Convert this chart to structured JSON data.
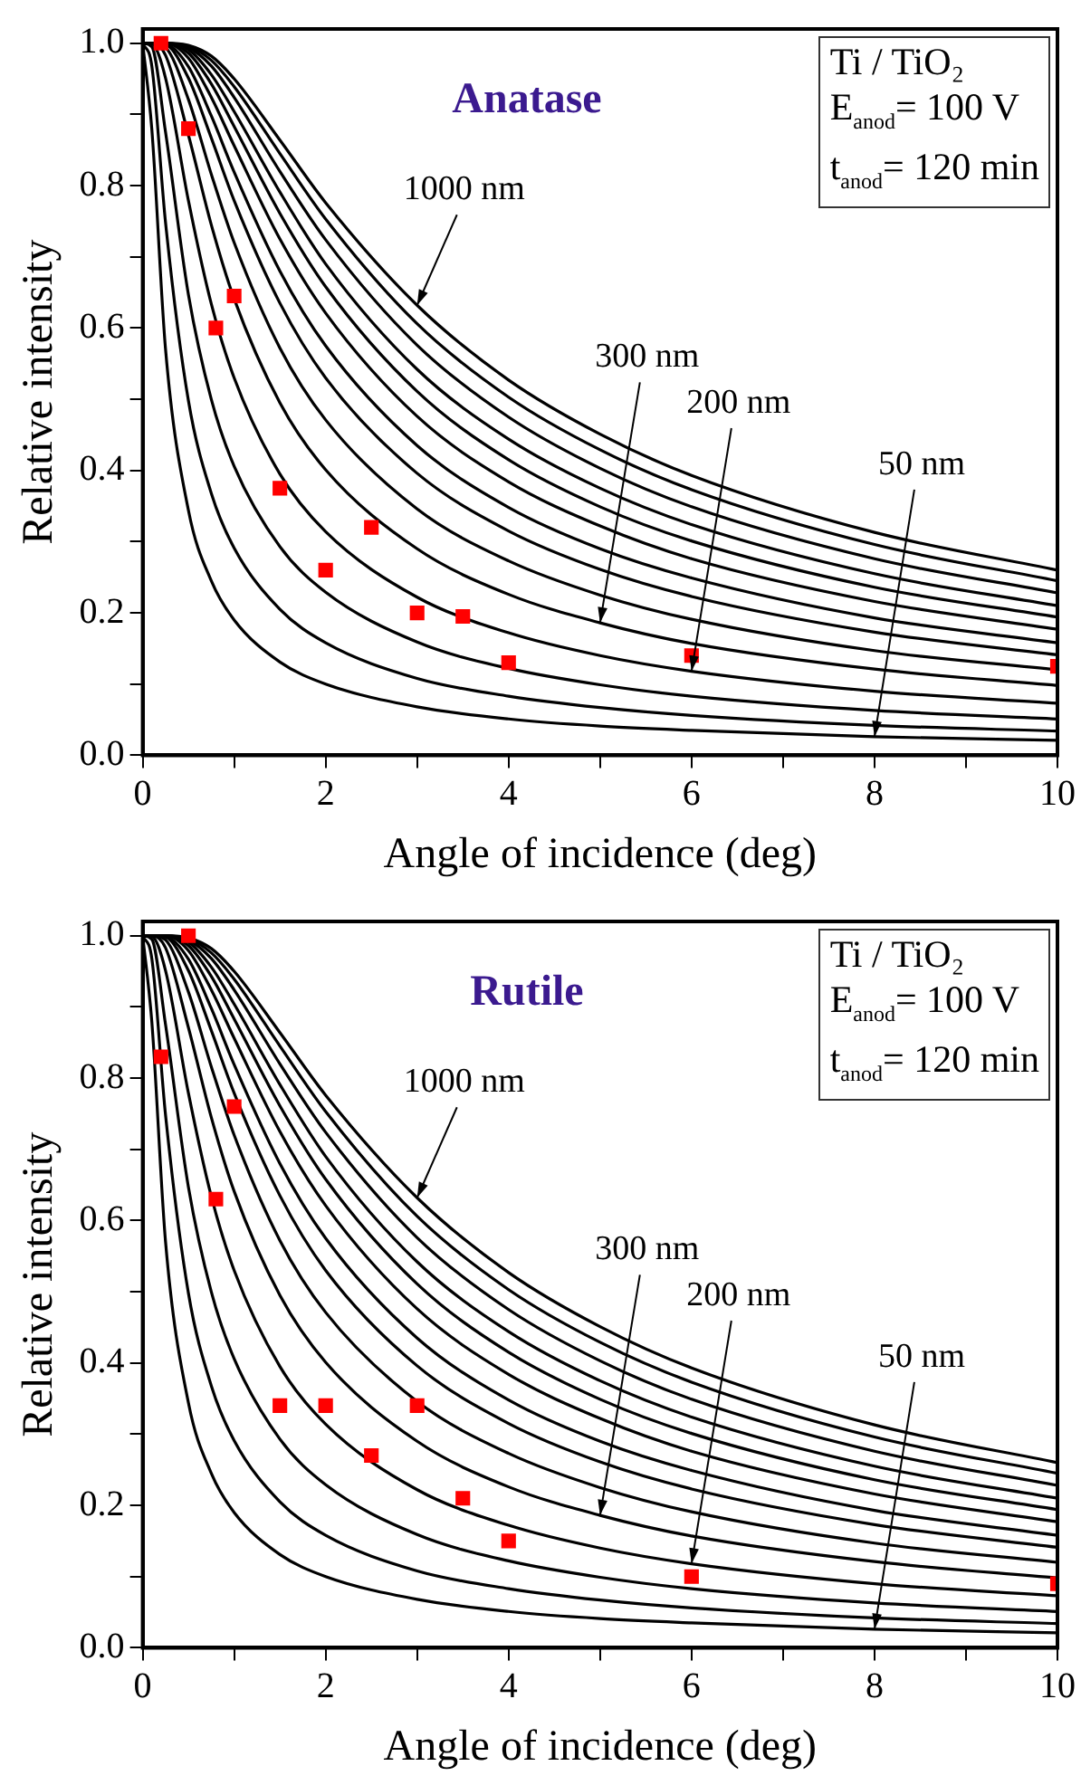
{
  "chart_data": [
    {
      "type": "line",
      "title": "Anatase",
      "xlabel": "Angle of incidence (deg)",
      "ylabel": "Relative intensity",
      "xlim": [
        0,
        10
      ],
      "ylim": [
        0,
        1.02
      ],
      "xticks": [
        0,
        {
          "value": 1,
          "label": null
        },
        2,
        {
          "value": 3,
          "label": null
        },
        4,
        {
          "value": 5,
          "label": null
        },
        6,
        {
          "value": 7,
          "label": null
        },
        8,
        {
          "value": 9,
          "label": null
        },
        10
      ],
      "yticks": [
        {
          "value": 0,
          "label": "0.0"
        },
        {
          "value": 0.1,
          "label": null
        },
        {
          "value": 0.2,
          "label": "0.2"
        },
        {
          "value": 0.3,
          "label": null
        },
        {
          "value": 0.4,
          "label": "0.4"
        },
        {
          "value": 0.5,
          "label": null
        },
        {
          "value": 0.6,
          "label": "0.6"
        },
        {
          "value": 0.7,
          "label": null
        },
        {
          "value": 0.8,
          "label": "0.8"
        },
        {
          "value": 0.9,
          "label": null
        },
        {
          "value": 1,
          "label": "1.0"
        }
      ],
      "x": [
        0,
        0.1,
        0.25,
        0.5,
        0.75,
        1,
        1.5,
        2,
        3,
        4,
        5,
        6,
        8,
        10
      ],
      "series": [
        {
          "color": "#000000",
          "values": [
            1,
            1,
            1,
            0.997,
            0.982,
            0.95,
            0.864,
            0.776,
            0.632,
            0.527,
            0.451,
            0.393,
            0.313,
            0.26
          ]
        },
        {
          "color": "#000000",
          "values": [
            1,
            1,
            1,
            0.996,
            0.976,
            0.939,
            0.845,
            0.753,
            0.606,
            0.503,
            0.429,
            0.373,
            0.296,
            0.245
          ]
        },
        {
          "color": "#000000",
          "values": [
            1,
            1,
            1,
            0.994,
            0.968,
            0.924,
            0.82,
            0.724,
            0.576,
            0.475,
            0.403,
            0.349,
            0.276,
            0.228
          ]
        },
        {
          "color": "#000000",
          "values": [
            1,
            1,
            1,
            0.991,
            0.956,
            0.904,
            0.791,
            0.69,
            0.542,
            0.444,
            0.375,
            0.324,
            0.255,
            0.21
          ]
        },
        {
          "color": "#000000",
          "values": [
            1,
            1,
            1,
            0.986,
            0.943,
            0.883,
            0.761,
            0.658,
            0.511,
            0.415,
            0.349,
            0.301,
            0.236,
            0.194
          ]
        },
        {
          "color": "#000000",
          "values": [
            1,
            1,
            1,
            0.979,
            0.924,
            0.856,
            0.725,
            0.621,
            0.476,
            0.384,
            0.322,
            0.276,
            0.216,
            0.177
          ]
        },
        {
          "color": "#000000",
          "values": [
            1,
            1,
            0.999,
            0.967,
            0.898,
            0.819,
            0.68,
            0.575,
            0.435,
            0.348,
            0.29,
            0.249,
            0.193,
            0.158
          ]
        },
        {
          "color": "#000000",
          "values": [
            1,
            1,
            0.998,
            0.951,
            0.867,
            0.779,
            0.635,
            0.53,
            0.396,
            0.315,
            0.261,
            0.223,
            0.173,
            0.141
          ]
        },
        {
          "color": "#000000",
          "values": [
            1,
            1,
            0.994,
            0.921,
            0.816,
            0.72,
            0.572,
            0.471,
            0.346,
            0.273,
            0.225,
            0.191,
            0.147,
            0.12
          ]
        },
        {
          "color": "#000000",
          "values": [
            1,
            1,
            0.983,
            0.871,
            0.745,
            0.641,
            0.495,
            0.401,
            0.29,
            0.226,
            0.186,
            0.157,
            0.121,
            0.098
          ]
        },
        {
          "color": "#000000",
          "values": [
            1,
            0.999,
            0.951,
            0.779,
            0.634,
            0.53,
            0.395,
            0.314,
            0.222,
            0.172,
            0.14,
            0.118,
            0.09,
            0.073
          ]
        },
        {
          "color": "#000000",
          "values": [
            1,
            0.995,
            0.875,
            0.647,
            0.5,
            0.406,
            0.293,
            0.229,
            0.159,
            0.122,
            0.099,
            0.083,
            0.063,
            0.051
          ]
        },
        {
          "color": "#000000",
          "values": [
            1,
            0.968,
            0.748,
            0.498,
            0.368,
            0.291,
            0.205,
            0.158,
            0.108,
            0.083,
            0.067,
            0.056,
            0.042,
            0.034
          ]
        },
        {
          "color": "#000000",
          "values": [
            1,
            0.879,
            0.57,
            0.344,
            0.245,
            0.19,
            0.131,
            0.1,
            0.068,
            0.051,
            0.041,
            0.035,
            0.026,
            0.021
          ]
        },
        {
          "type": "scatter",
          "marker": "square",
          "color": "#ff0000",
          "x": [
            0.2,
            0.5,
            0.8,
            1,
            1.5,
            2,
            2.5,
            3,
            3.5,
            4,
            6,
            10
          ],
          "values": [
            1,
            0.88,
            0.6,
            0.645,
            0.375,
            0.26,
            0.32,
            0.2,
            0.195,
            0.13,
            0.14,
            0.125
          ]
        }
      ],
      "annotations": [
        "Ti / TiO₂",
        "E$_{anod}$= 100 V",
        "t$_{anod}$= 120 min",
        {
          "text": "1000 nm",
          "x": 3,
          "y": 0.632
        },
        {
          "text": "300 nm",
          "x": 5,
          "y": 0.186
        },
        {
          "text": "200 nm",
          "x": 6,
          "y": 0.118
        },
        {
          "text": "50 nm",
          "x": 8,
          "y": 0.026
        }
      ]
    },
    {
      "type": "line",
      "title": "Rutile",
      "xlabel": "Angle of incidence (deg)",
      "ylabel": "Relative intensity",
      "xlim": [
        0,
        10
      ],
      "ylim": [
        0,
        1.02
      ],
      "xticks": [
        0,
        {
          "value": 1,
          "label": null
        },
        2,
        {
          "value": 3,
          "label": null
        },
        4,
        {
          "value": 5,
          "label": null
        },
        6,
        {
          "value": 7,
          "label": null
        },
        8,
        {
          "value": 9,
          "label": null
        },
        10
      ],
      "yticks": [
        {
          "value": 0,
          "label": "0.0"
        },
        {
          "value": 0.1,
          "label": null
        },
        {
          "value": 0.2,
          "label": "0.2"
        },
        {
          "value": 0.3,
          "label": null
        },
        {
          "value": 0.4,
          "label": "0.4"
        },
        {
          "value": 0.5,
          "label": null
        },
        {
          "value": 0.6,
          "label": "0.6"
        },
        {
          "value": 0.7,
          "label": null
        },
        {
          "value": 0.8,
          "label": "0.8"
        },
        {
          "value": 0.9,
          "label": null
        },
        {
          "value": 1,
          "label": "1.0"
        }
      ],
      "x": [
        0,
        0.1,
        0.25,
        0.5,
        0.75,
        1,
        1.5,
        2,
        3,
        4,
        5,
        6,
        8,
        10
      ],
      "series": [
        {
          "color": "#000000",
          "values": [
            1,
            1,
            1,
            0.997,
            0.982,
            0.95,
            0.864,
            0.776,
            0.632,
            0.527,
            0.451,
            0.393,
            0.313,
            0.26
          ]
        },
        {
          "color": "#000000",
          "values": [
            1,
            1,
            1,
            0.996,
            0.976,
            0.939,
            0.845,
            0.753,
            0.606,
            0.503,
            0.429,
            0.373,
            0.296,
            0.245
          ]
        },
        {
          "color": "#000000",
          "values": [
            1,
            1,
            1,
            0.994,
            0.968,
            0.924,
            0.82,
            0.724,
            0.576,
            0.475,
            0.403,
            0.349,
            0.276,
            0.228
          ]
        },
        {
          "color": "#000000",
          "values": [
            1,
            1,
            1,
            0.991,
            0.956,
            0.904,
            0.791,
            0.69,
            0.542,
            0.444,
            0.375,
            0.324,
            0.255,
            0.21
          ]
        },
        {
          "color": "#000000",
          "values": [
            1,
            1,
            1,
            0.986,
            0.943,
            0.883,
            0.761,
            0.658,
            0.511,
            0.415,
            0.349,
            0.301,
            0.236,
            0.194
          ]
        },
        {
          "color": "#000000",
          "values": [
            1,
            1,
            1,
            0.979,
            0.924,
            0.856,
            0.725,
            0.621,
            0.476,
            0.384,
            0.322,
            0.276,
            0.216,
            0.177
          ]
        },
        {
          "color": "#000000",
          "values": [
            1,
            1,
            0.999,
            0.967,
            0.898,
            0.819,
            0.68,
            0.575,
            0.435,
            0.348,
            0.29,
            0.249,
            0.193,
            0.158
          ]
        },
        {
          "color": "#000000",
          "values": [
            1,
            1,
            0.998,
            0.951,
            0.867,
            0.779,
            0.635,
            0.53,
            0.396,
            0.315,
            0.261,
            0.223,
            0.173,
            0.141
          ]
        },
        {
          "color": "#000000",
          "values": [
            1,
            1,
            0.994,
            0.921,
            0.816,
            0.72,
            0.572,
            0.471,
            0.346,
            0.273,
            0.225,
            0.191,
            0.147,
            0.12
          ]
        },
        {
          "color": "#000000",
          "values": [
            1,
            1,
            0.983,
            0.871,
            0.745,
            0.641,
            0.495,
            0.401,
            0.29,
            0.226,
            0.186,
            0.157,
            0.121,
            0.098
          ]
        },
        {
          "color": "#000000",
          "values": [
            1,
            0.999,
            0.951,
            0.779,
            0.634,
            0.53,
            0.395,
            0.314,
            0.222,
            0.172,
            0.14,
            0.118,
            0.09,
            0.073
          ]
        },
        {
          "color": "#000000",
          "values": [
            1,
            0.995,
            0.875,
            0.647,
            0.5,
            0.406,
            0.293,
            0.229,
            0.159,
            0.122,
            0.099,
            0.083,
            0.063,
            0.051
          ]
        },
        {
          "color": "#000000",
          "values": [
            1,
            0.968,
            0.748,
            0.498,
            0.368,
            0.291,
            0.205,
            0.158,
            0.108,
            0.083,
            0.067,
            0.056,
            0.042,
            0.034
          ]
        },
        {
          "color": "#000000",
          "values": [
            1,
            0.879,
            0.57,
            0.344,
            0.245,
            0.19,
            0.131,
            0.1,
            0.068,
            0.051,
            0.041,
            0.035,
            0.026,
            0.021
          ]
        },
        {
          "type": "scatter",
          "marker": "square",
          "color": "#ff0000",
          "x": [
            0.2,
            0.5,
            0.8,
            1,
            1.5,
            2,
            2.5,
            3,
            3.5,
            4,
            6,
            10
          ],
          "values": [
            0.83,
            1,
            0.63,
            0.76,
            0.34,
            0.34,
            0.27,
            0.34,
            0.21,
            0.15,
            0.1,
            0.09
          ]
        }
      ],
      "annotations": [
        "Ti / TiO₂",
        "E$_{anod}$= 100 V",
        "t$_{anod}$= 120 min",
        {
          "text": "1000 nm",
          "x": 3,
          "y": 0.632
        },
        {
          "text": "300 nm",
          "x": 5,
          "y": 0.186
        },
        {
          "text": "200 nm",
          "x": 6,
          "y": 0.118
        },
        {
          "text": "50 nm",
          "x": 8,
          "y": 0.026
        }
      ]
    }
  ]
}
